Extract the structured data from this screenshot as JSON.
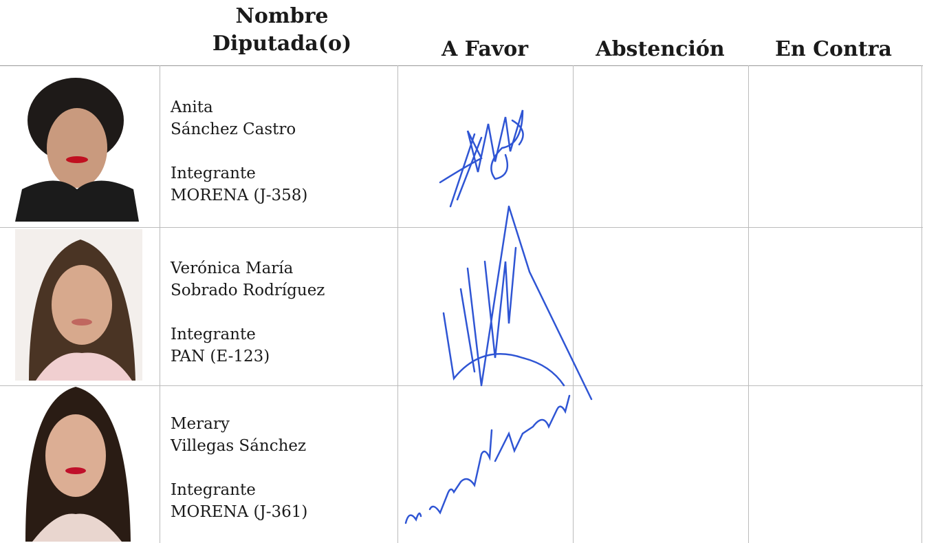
{
  "header": {
    "name_column": [
      "Nombre",
      "Diputada(o)"
    ],
    "columns": [
      "A Favor",
      "Abstención",
      "En Contra"
    ]
  },
  "rows": [
    {
      "first_name": "Anita",
      "last_name": "Sánchez Castro",
      "role": "Integrante",
      "party": "MORENA (J-358)"
    },
    {
      "first_name": "Verónica María",
      "last_name": "Sobrado Rodríguez",
      "role": "Integrante",
      "party": "PAN (E-123)"
    },
    {
      "first_name": "Merary",
      "last_name": "Villegas Sánchez",
      "role": "Integrante",
      "party": "MORENA (J-361)"
    }
  ]
}
